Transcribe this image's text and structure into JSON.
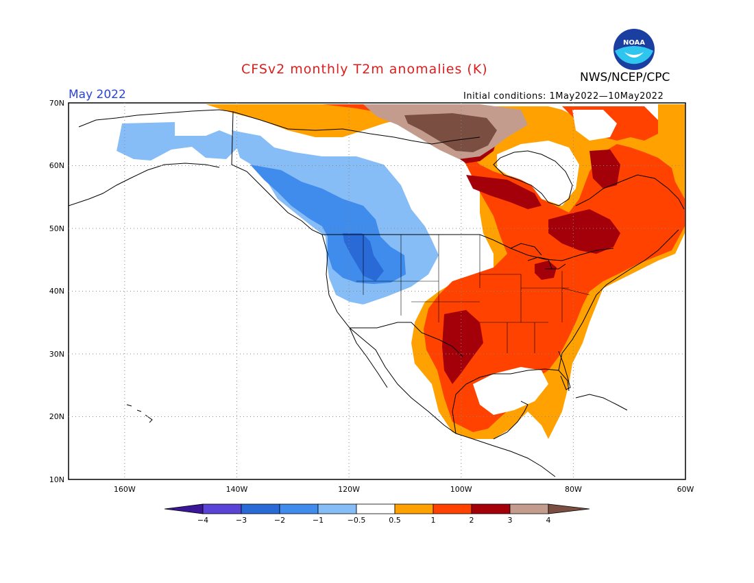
{
  "header": {
    "title": "CFSv2 monthly T2m anomalies (K)",
    "agency": "NWS/NCEP/CPC",
    "month": "May 2022",
    "initial_conditions": "Initial conditions: 1May2022—10May2022",
    "logo_text": "NOAA"
  },
  "map": {
    "region": "North America",
    "lon_range": [
      -170,
      -60
    ],
    "lat_range": [
      10,
      70
    ],
    "lat_labels": [
      "10N",
      "20N",
      "30N",
      "40N",
      "50N",
      "60N",
      "70N"
    ],
    "lon_labels": [
      "160W",
      "140W",
      "120W",
      "100W",
      "80W",
      "60W"
    ],
    "features": [
      {
        "name": "cool-anomaly-northwest",
        "level": "-2 to -0.5",
        "area": "Alaska, western Canada, US Northwest"
      },
      {
        "name": "warm-anomaly-east",
        "level": "0.5 to 3",
        "area": "central and eastern US, eastern Canada, Mexico"
      },
      {
        "name": "strong-warm-anomaly-arctic",
        "level": "3 to 4+",
        "area": "northern Canada / Arctic coast"
      }
    ]
  },
  "colorbar": {
    "ticks": [
      "−4",
      "−3",
      "−2",
      "−1",
      "−0.5",
      "0.5",
      "1",
      "2",
      "3",
      "4"
    ],
    "colors": {
      "lt_m4": "#3a1796",
      "m4_m3": "#5a44d6",
      "m3_m2": "#2a6ad6",
      "m2_m1": "#3f8cec",
      "m1_m05": "#87bdf7",
      "neutral": "#ffffff",
      "p05_1": "#ffa100",
      "p1_2": "#ff4200",
      "p2_3": "#a4000a",
      "p3_4": "#c49c8e",
      "gt_4": "#7a4f42"
    }
  }
}
